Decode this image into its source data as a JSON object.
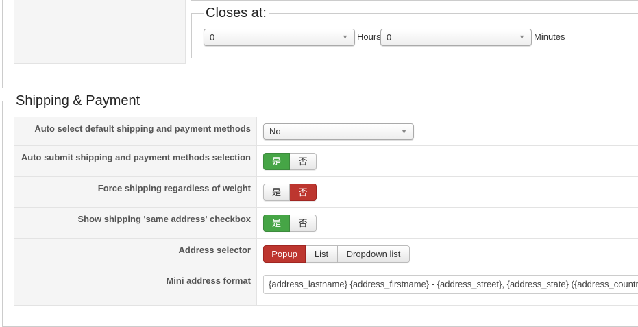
{
  "closes_at": {
    "legend": "Closes at:",
    "hours_value": "0",
    "hours_label": "Hours",
    "minutes_value": "0",
    "minutes_label": "Minutes"
  },
  "shipping": {
    "legend": "Shipping & Payment",
    "rows": [
      {
        "label": "Auto select default shipping and payment methods",
        "value": "No"
      },
      {
        "label": "Auto submit shipping and payment methods selection",
        "yes": "是",
        "no": "否",
        "selected": "yes"
      },
      {
        "label": "Force shipping regardless of weight",
        "yes": "是",
        "no": "否",
        "selected": "no"
      },
      {
        "label": "Show shipping 'same address' checkbox",
        "yes": "是",
        "no": "否",
        "selected": "yes"
      },
      {
        "label": "Address selector",
        "options": [
          "Popup",
          "List",
          "Dropdown list"
        ],
        "selected": "Popup"
      },
      {
        "label": "Mini address format",
        "value": "{address_lastname} {address_firstname} - {address_street}, {address_state} ({address_country"
      }
    ]
  },
  "colors": {
    "yes_active": "#46a546",
    "no_active": "#bd362f"
  }
}
